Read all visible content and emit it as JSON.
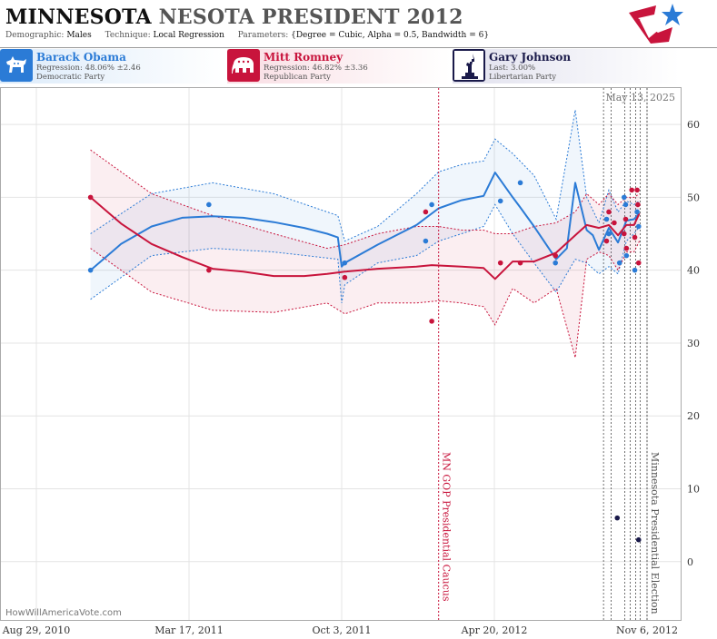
{
  "header": {
    "title_part1": "MINNESOTA",
    "title_part2": "NESOTA PRESIDENT 2012",
    "demographic_label": "Demographic:",
    "demographic_value": "Males",
    "technique_label": "Technique:",
    "technique_value": "Local Regression",
    "parameters_label": "Parameters:",
    "parameters_value": "{Degree = Cubic, Alpha = 0.5, Bandwidth = 6}"
  },
  "candidates": [
    {
      "name": "Barack Obama",
      "line2": "Regression: 48.06% ±2.46",
      "line3": "Democratic Party",
      "color": "#2b7bd6",
      "icon": "donkey-icon"
    },
    {
      "name": "Mitt Romney",
      "line2": "Regression: 46.82% ±3.36",
      "line3": "Republican Party",
      "color": "#c8143c",
      "icon": "elephant-icon"
    },
    {
      "name": "Gary Johnson",
      "line2": "Last: 3.00%",
      "line3": "Libertarian Party",
      "color": "#1a1a4a",
      "icon": "statue-of-liberty-icon"
    }
  ],
  "chart_data": {
    "type": "line",
    "date_stamp": "May 13, 2025",
    "watermark": "HowWillAmericaVote.com",
    "x_ticks": [
      "Aug 29, 2010",
      "Mar 17, 2011",
      "Oct 3, 2011",
      "Apr 20, 2012",
      "Nov 6, 2012"
    ],
    "y_ticks": [
      0,
      10,
      20,
      30,
      40,
      50,
      60
    ],
    "y_range": [
      -8,
      65
    ],
    "x_range": [
      "2010-08-29",
      "2012-11-06"
    ],
    "annotations": [
      {
        "date": "2012-02-07",
        "label": "MN GOP Presidential Caucus",
        "color": "#c8143c"
      },
      {
        "date": "2012-11-06",
        "label": "Minnesota Presidential Election",
        "color": "#555555"
      }
    ],
    "poll_dates": [
      "2012-09-10",
      "2012-09-20",
      "2012-10-08",
      "2012-10-15",
      "2012-10-22",
      "2012-10-28"
    ],
    "series": [
      {
        "name": "Barack Obama",
        "color": "#2b7bd6",
        "points": [
          [
            "2010-11-08",
            40
          ],
          [
            "2011-04-12",
            49
          ],
          [
            "2011-10-07",
            41
          ],
          [
            "2012-01-21",
            44
          ],
          [
            "2012-01-29",
            49
          ],
          [
            "2012-04-28",
            49.5
          ],
          [
            "2012-05-24",
            52
          ],
          [
            "2012-07-09",
            41
          ],
          [
            "2012-09-14",
            47
          ],
          [
            "2012-09-17",
            45
          ],
          [
            "2012-10-01",
            41
          ],
          [
            "2012-10-07",
            50
          ],
          [
            "2012-10-09",
            49
          ],
          [
            "2012-10-10",
            42
          ],
          [
            "2012-10-21",
            40
          ],
          [
            "2012-10-24",
            48
          ],
          [
            "2012-10-26",
            46
          ]
        ],
        "trend": [
          [
            "2010-11-08",
            40
          ],
          [
            "2010-12-18",
            43.6
          ],
          [
            "2011-01-27",
            46
          ],
          [
            "2011-03-08",
            47.2
          ],
          [
            "2011-04-17",
            47.4
          ],
          [
            "2011-05-27",
            47.2
          ],
          [
            "2011-07-06",
            46.6
          ],
          [
            "2011-08-15",
            45.8
          ],
          [
            "2011-09-14",
            45
          ],
          [
            "2011-09-28",
            44.5
          ],
          [
            "2011-10-03",
            40.5
          ],
          [
            "2011-10-07",
            41
          ],
          [
            "2011-11-19",
            43.5
          ],
          [
            "2012-01-09",
            46.2
          ],
          [
            "2012-02-07",
            48.5
          ],
          [
            "2012-03-08",
            49.6
          ],
          [
            "2012-04-06",
            50.2
          ],
          [
            "2012-04-21",
            53.4
          ],
          [
            "2012-05-14",
            50
          ],
          [
            "2012-05-24",
            48.6
          ],
          [
            "2012-06-11",
            46
          ],
          [
            "2012-07-10",
            41.5
          ],
          [
            "2012-07-24",
            43
          ],
          [
            "2012-08-04",
            52
          ],
          [
            "2012-08-19",
            45.5
          ],
          [
            "2012-08-27",
            44.8
          ],
          [
            "2012-09-04",
            42.8
          ],
          [
            "2012-09-17",
            45.8
          ],
          [
            "2012-09-29",
            43.8
          ],
          [
            "2012-10-10",
            46.8
          ],
          [
            "2012-10-20",
            47
          ],
          [
            "2012-10-27",
            47.8
          ]
        ],
        "upper": [
          [
            "2010-11-08",
            45
          ],
          [
            "2011-01-27",
            50.5
          ],
          [
            "2011-04-17",
            52
          ],
          [
            "2011-07-06",
            50.5
          ],
          [
            "2011-09-28",
            47.5
          ],
          [
            "2011-10-07",
            44
          ],
          [
            "2011-11-19",
            46
          ],
          [
            "2012-01-09",
            50.5
          ],
          [
            "2012-02-07",
            53.5
          ],
          [
            "2012-03-08",
            54.5
          ],
          [
            "2012-04-06",
            55
          ],
          [
            "2012-04-21",
            58
          ],
          [
            "2012-05-14",
            56
          ],
          [
            "2012-06-11",
            53
          ],
          [
            "2012-07-10",
            47
          ],
          [
            "2012-08-04",
            62
          ],
          [
            "2012-08-19",
            50
          ],
          [
            "2012-09-04",
            46.5
          ],
          [
            "2012-09-17",
            51
          ],
          [
            "2012-09-29",
            48
          ],
          [
            "2012-10-10",
            49.5
          ],
          [
            "2012-10-20",
            49
          ],
          [
            "2012-10-27",
            49.5
          ]
        ],
        "lower": [
          [
            "2010-11-08",
            36
          ],
          [
            "2011-01-27",
            42
          ],
          [
            "2011-04-17",
            43
          ],
          [
            "2011-07-06",
            42.5
          ],
          [
            "2011-09-28",
            41.5
          ],
          [
            "2011-10-03",
            35.5
          ],
          [
            "2011-10-07",
            38
          ],
          [
            "2011-11-19",
            41
          ],
          [
            "2012-01-09",
            42
          ],
          [
            "2012-02-07",
            44
          ],
          [
            "2012-03-08",
            45
          ],
          [
            "2012-04-06",
            46
          ],
          [
            "2012-04-21",
            49
          ],
          [
            "2012-05-14",
            45
          ],
          [
            "2012-06-11",
            41
          ],
          [
            "2012-07-10",
            37
          ],
          [
            "2012-08-04",
            41.5
          ],
          [
            "2012-08-19",
            41
          ],
          [
            "2012-09-04",
            39.5
          ],
          [
            "2012-09-17",
            40.5
          ],
          [
            "2012-09-29",
            39.5
          ],
          [
            "2012-10-10",
            44
          ],
          [
            "2012-10-20",
            45
          ],
          [
            "2012-10-27",
            46
          ]
        ]
      },
      {
        "name": "Mitt Romney",
        "color": "#c8143c",
        "points": [
          [
            "2010-11-08",
            50
          ],
          [
            "2011-04-12",
            40
          ],
          [
            "2011-10-07",
            39
          ],
          [
            "2012-01-21",
            48
          ],
          [
            "2012-01-29",
            33
          ],
          [
            "2012-04-28",
            41
          ],
          [
            "2012-05-24",
            41
          ],
          [
            "2012-07-09",
            42
          ],
          [
            "2012-09-14",
            44
          ],
          [
            "2012-09-17",
            48
          ],
          [
            "2012-09-24",
            46.5
          ],
          [
            "2012-10-07",
            45
          ],
          [
            "2012-10-09",
            47
          ],
          [
            "2012-10-10",
            43
          ],
          [
            "2012-10-17",
            51
          ],
          [
            "2012-10-21",
            44.5
          ],
          [
            "2012-10-24",
            51
          ],
          [
            "2012-10-25",
            49
          ],
          [
            "2012-10-26",
            41
          ]
        ],
        "trend": [
          [
            "2010-11-08",
            50
          ],
          [
            "2010-12-18",
            46.4
          ],
          [
            "2011-01-27",
            43.6
          ],
          [
            "2011-03-08",
            41.8
          ],
          [
            "2011-04-17",
            40.2
          ],
          [
            "2011-05-27",
            39.8
          ],
          [
            "2011-07-06",
            39.2
          ],
          [
            "2011-08-15",
            39.2
          ],
          [
            "2011-09-14",
            39.5
          ],
          [
            "2011-10-07",
            39.8
          ],
          [
            "2011-11-19",
            40.2
          ],
          [
            "2012-01-09",
            40.5
          ],
          [
            "2012-01-29",
            40.7
          ],
          [
            "2012-03-08",
            40.5
          ],
          [
            "2012-04-06",
            40.3
          ],
          [
            "2012-04-21",
            38.8
          ],
          [
            "2012-05-14",
            41.2
          ],
          [
            "2012-06-11",
            41.2
          ],
          [
            "2012-07-10",
            42.4
          ],
          [
            "2012-08-04",
            44.8
          ],
          [
            "2012-08-19",
            46.2
          ],
          [
            "2012-09-04",
            45.8
          ],
          [
            "2012-09-17",
            46.2
          ],
          [
            "2012-09-29",
            44.8
          ],
          [
            "2012-10-10",
            46.2
          ],
          [
            "2012-10-20",
            46.2
          ],
          [
            "2012-10-27",
            47.8
          ]
        ],
        "upper": [
          [
            "2010-11-08",
            56.5
          ],
          [
            "2011-01-27",
            50.5
          ],
          [
            "2011-04-17",
            47.5
          ],
          [
            "2011-07-06",
            45
          ],
          [
            "2011-09-14",
            43
          ],
          [
            "2011-10-07",
            43.5
          ],
          [
            "2011-11-19",
            45
          ],
          [
            "2012-01-09",
            46
          ],
          [
            "2012-02-07",
            46
          ],
          [
            "2012-03-08",
            45.5
          ],
          [
            "2012-04-06",
            45.5
          ],
          [
            "2012-04-21",
            45
          ],
          [
            "2012-05-14",
            45
          ],
          [
            "2012-06-11",
            46
          ],
          [
            "2012-07-10",
            46.5
          ],
          [
            "2012-08-04",
            48
          ],
          [
            "2012-08-19",
            50.5
          ],
          [
            "2012-09-04",
            49
          ],
          [
            "2012-09-17",
            50.5
          ],
          [
            "2012-09-29",
            49
          ],
          [
            "2012-10-10",
            50
          ],
          [
            "2012-10-20",
            50
          ],
          [
            "2012-10-27",
            50.5
          ]
        ],
        "lower": [
          [
            "2010-11-08",
            43
          ],
          [
            "2011-01-27",
            37
          ],
          [
            "2011-04-17",
            34.5
          ],
          [
            "2011-07-06",
            34.2
          ],
          [
            "2011-09-14",
            35.5
          ],
          [
            "2011-10-07",
            34
          ],
          [
            "2011-11-19",
            35.5
          ],
          [
            "2012-01-09",
            35.5
          ],
          [
            "2012-02-07",
            35.8
          ],
          [
            "2012-03-08",
            35.5
          ],
          [
            "2012-04-06",
            35
          ],
          [
            "2012-04-21",
            32.5
          ],
          [
            "2012-05-14",
            37.5
          ],
          [
            "2012-06-11",
            35.5
          ],
          [
            "2012-07-10",
            37.5
          ],
          [
            "2012-08-04",
            28
          ],
          [
            "2012-08-19",
            41.5
          ],
          [
            "2012-09-04",
            42.5
          ],
          [
            "2012-09-17",
            42
          ],
          [
            "2012-09-29",
            40
          ],
          [
            "2012-10-10",
            42.5
          ],
          [
            "2012-10-20",
            42.5
          ],
          [
            "2012-10-27",
            44
          ]
        ]
      },
      {
        "name": "Gary Johnson",
        "color": "#1a1a4a",
        "points": [
          [
            "2012-09-28",
            6
          ],
          [
            "2012-10-26",
            3
          ]
        ]
      }
    ]
  }
}
